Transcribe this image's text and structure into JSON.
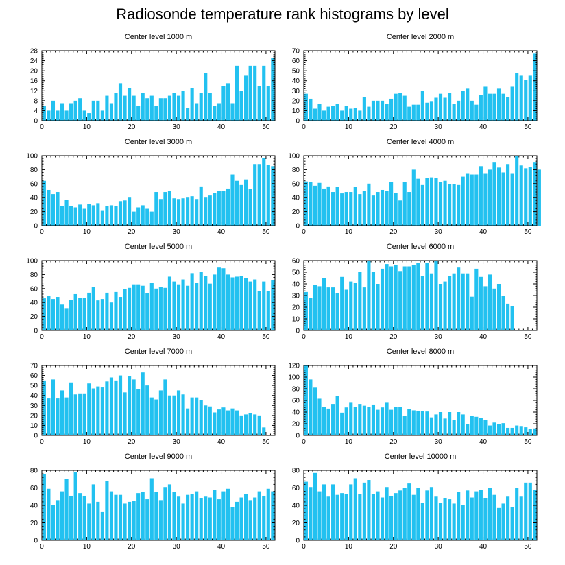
{
  "title": "Radiosonde temperature rank histograms by level",
  "colors": {
    "bar": "#22c1f0",
    "axis": "#000000",
    "background": "#ffffff"
  },
  "chart_data": [
    {
      "type": "bar",
      "title": "Center level 1000 m",
      "xlim": [
        0,
        52
      ],
      "ylim": [
        0,
        28
      ],
      "xticks": [
        0,
        10,
        20,
        30,
        40,
        50
      ],
      "yticks": [
        0,
        4,
        8,
        12,
        16,
        20,
        24,
        28
      ],
      "values": [
        6,
        4,
        8,
        4,
        7,
        4,
        7,
        8,
        9,
        4,
        3,
        8,
        8,
        4,
        10,
        7,
        11,
        15,
        10,
        13,
        10,
        6,
        11,
        9,
        10,
        6,
        9,
        9,
        10,
        11,
        10,
        12,
        5,
        13,
        7,
        11,
        19,
        11,
        6,
        7,
        14,
        15,
        7,
        22,
        12,
        18,
        22,
        22,
        14,
        22,
        14,
        25
      ]
    },
    {
      "type": "bar",
      "title": "Center level 2000 m",
      "xlim": [
        0,
        52
      ],
      "ylim": [
        0,
        70
      ],
      "xticks": [
        0,
        10,
        20,
        30,
        40,
        50
      ],
      "yticks": [
        0,
        10,
        20,
        30,
        40,
        50,
        60,
        70
      ],
      "values": [
        27,
        22,
        12,
        17,
        10,
        14,
        15,
        17,
        10,
        15,
        12,
        13,
        10,
        24,
        14,
        20,
        20,
        20,
        17,
        22,
        27,
        28,
        25,
        14,
        16,
        16,
        30,
        18,
        19,
        23,
        27,
        23,
        28,
        17,
        20,
        30,
        32,
        20,
        16,
        26,
        34,
        27,
        27,
        32,
        27,
        24,
        34,
        48,
        45,
        41,
        45,
        67
      ]
    },
    {
      "type": "bar",
      "title": "Center level 3000 m",
      "xlim": [
        0,
        52
      ],
      "ylim": [
        0,
        100
      ],
      "xticks": [
        0,
        10,
        20,
        30,
        40,
        50
      ],
      "yticks": [
        0,
        20,
        40,
        60,
        80,
        100
      ],
      "values": [
        64,
        51,
        45,
        48,
        28,
        37,
        28,
        26,
        30,
        24,
        31,
        29,
        32,
        22,
        28,
        29,
        28,
        35,
        36,
        40,
        20,
        26,
        29,
        24,
        20,
        48,
        38,
        48,
        50,
        39,
        38,
        39,
        40,
        42,
        38,
        56,
        40,
        43,
        47,
        50,
        50,
        53,
        73,
        64,
        58,
        66,
        52,
        88,
        88,
        97,
        87,
        85
      ]
    },
    {
      "type": "bar",
      "title": "Center level 4000 m",
      "xlim": [
        0,
        52
      ],
      "ylim": [
        0,
        100
      ],
      "xticks": [
        0,
        10,
        20,
        30,
        40,
        50
      ],
      "yticks": [
        0,
        20,
        40,
        60,
        80,
        100
      ],
      "values": [
        63,
        62,
        57,
        61,
        53,
        56,
        48,
        55,
        46,
        48,
        48,
        55,
        45,
        50,
        60,
        43,
        48,
        51,
        50,
        62,
        47,
        36,
        62,
        48,
        80,
        67,
        58,
        68,
        69,
        68,
        62,
        64,
        59,
        59,
        58,
        70,
        74,
        73,
        73,
        85,
        74,
        80,
        91,
        83,
        76,
        88,
        74,
        99,
        86,
        82,
        84,
        91,
        80
      ]
    },
    {
      "type": "bar",
      "title": "Center level 5000 m",
      "xlim": [
        0,
        52
      ],
      "ylim": [
        0,
        100
      ],
      "xticks": [
        0,
        10,
        20,
        30,
        40,
        50
      ],
      "yticks": [
        0,
        20,
        40,
        60,
        80,
        100
      ],
      "values": [
        46,
        49,
        45,
        48,
        37,
        32,
        44,
        52,
        47,
        47,
        54,
        62,
        43,
        45,
        54,
        40,
        55,
        48,
        59,
        61,
        66,
        66,
        64,
        53,
        68,
        60,
        62,
        61,
        77,
        70,
        66,
        73,
        64,
        82,
        68,
        84,
        78,
        67,
        80,
        90,
        89,
        80,
        76,
        77,
        78,
        75,
        70,
        73,
        56,
        70,
        56,
        72
      ]
    },
    {
      "type": "bar",
      "title": "Center level 6000 m",
      "xlim": [
        0,
        52
      ],
      "ylim": [
        0,
        60
      ],
      "xticks": [
        0,
        10,
        20,
        30,
        40,
        50
      ],
      "yticks": [
        0,
        10,
        20,
        30,
        40,
        50,
        60
      ],
      "values": [
        33,
        28,
        39,
        38,
        45,
        37,
        37,
        32,
        46,
        35,
        42,
        41,
        50,
        37,
        60,
        50,
        40,
        53,
        57,
        55,
        56,
        51,
        55,
        55,
        56,
        58,
        47,
        58,
        49,
        60,
        40,
        42,
        47,
        49,
        54,
        49,
        49,
        29,
        53,
        46,
        38,
        48,
        36,
        40,
        30,
        23,
        21
      ]
    },
    {
      "type": "bar",
      "title": "Center level 7000 m",
      "xlim": [
        0,
        52
      ],
      "ylim": [
        0,
        70
      ],
      "xticks": [
        0,
        10,
        20,
        30,
        40,
        50
      ],
      "yticks": [
        0,
        10,
        20,
        30,
        40,
        50,
        60,
        70
      ],
      "values": [
        55,
        37,
        56,
        37,
        45,
        38,
        53,
        41,
        42,
        42,
        52,
        47,
        49,
        48,
        54,
        58,
        55,
        60,
        43,
        59,
        56,
        46,
        63,
        50,
        38,
        36,
        45,
        56,
        40,
        40,
        45,
        41,
        27,
        38,
        38,
        35,
        30,
        29,
        23,
        26,
        28,
        25,
        27,
        25,
        20,
        21,
        22,
        21,
        20,
        8,
        0,
        0
      ]
    },
    {
      "type": "bar",
      "title": "Center level 8000 m",
      "xlim": [
        0,
        52
      ],
      "ylim": [
        0,
        120
      ],
      "xticks": [
        0,
        10,
        20,
        30,
        40,
        50
      ],
      "yticks": [
        0,
        20,
        40,
        60,
        80,
        100,
        120
      ],
      "values": [
        120,
        96,
        82,
        63,
        49,
        46,
        54,
        68,
        39,
        48,
        56,
        49,
        54,
        51,
        49,
        53,
        44,
        48,
        56,
        44,
        49,
        49,
        34,
        45,
        43,
        42,
        42,
        41,
        31,
        36,
        40,
        29,
        40,
        26,
        40,
        36,
        20,
        33,
        32,
        30,
        27,
        17,
        22,
        20,
        21,
        13,
        13,
        17,
        15,
        14,
        11,
        12
      ]
    },
    {
      "type": "bar",
      "title": "Center level 9000 m",
      "xlim": [
        0,
        52
      ],
      "ylim": [
        0,
        80
      ],
      "xticks": [
        0,
        10,
        20,
        30,
        40,
        50
      ],
      "yticks": [
        0,
        20,
        40,
        60,
        80
      ],
      "values": [
        76,
        59,
        40,
        46,
        56,
        70,
        51,
        78,
        54,
        51,
        42,
        64,
        44,
        33,
        68,
        56,
        52,
        52,
        42,
        44,
        45,
        54,
        55,
        47,
        71,
        55,
        46,
        61,
        64,
        55,
        50,
        42,
        52,
        53,
        56,
        48,
        50,
        49,
        58,
        47,
        56,
        59,
        38,
        44,
        49,
        53,
        46,
        49,
        56,
        51,
        59,
        56
      ]
    },
    {
      "type": "bar",
      "title": "Center level 10000 m",
      "xlim": [
        0,
        52
      ],
      "ylim": [
        0,
        80
      ],
      "xticks": [
        0,
        10,
        20,
        30,
        40,
        50
      ],
      "yticks": [
        0,
        20,
        40,
        60,
        80
      ],
      "values": [
        67,
        61,
        77,
        56,
        64,
        50,
        64,
        52,
        54,
        53,
        64,
        71,
        53,
        66,
        69,
        53,
        56,
        49,
        61,
        51,
        54,
        57,
        60,
        65,
        52,
        60,
        43,
        57,
        61,
        50,
        43,
        48,
        47,
        42,
        55,
        40,
        57,
        49,
        56,
        58,
        48,
        60,
        52,
        37,
        42,
        50,
        38,
        60,
        50,
        66,
        66,
        58
      ]
    }
  ]
}
